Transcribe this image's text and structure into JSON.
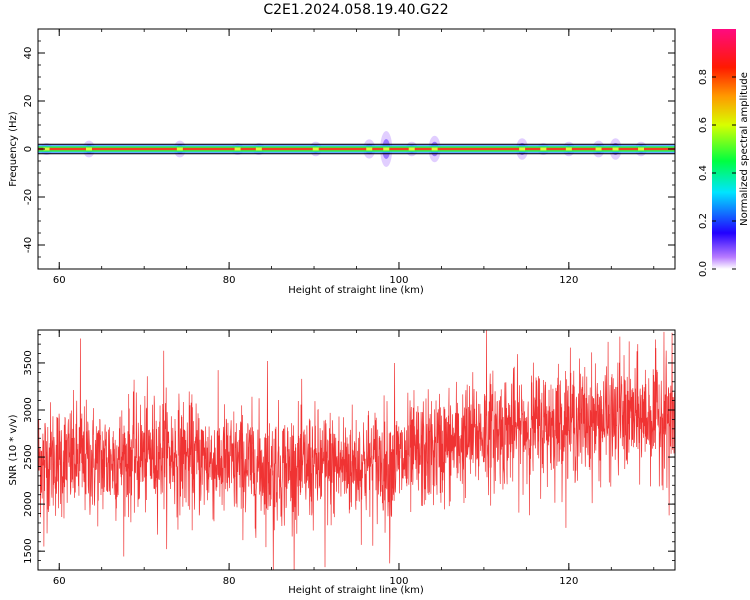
{
  "title": "C2E1.2024.058.19.40.G22",
  "chart_data": [
    {
      "type": "heatmap",
      "xlabel": "Height of straight line (km)",
      "ylabel": "Frequency (Hz)",
      "xlim": [
        57.5,
        132.5
      ],
      "ylim": [
        -50,
        50
      ],
      "xticks": [
        "60",
        "80",
        "100",
        "120"
      ],
      "yticks": [
        "40",
        "20",
        "0",
        "-20",
        "-40"
      ],
      "colorbar": {
        "label": "Normalized spectral amplitude",
        "range": [
          0,
          1
        ],
        "ticks": [
          "0.0",
          "0.2",
          "0.4",
          "0.6",
          "0.8"
        ]
      },
      "signal": {
        "frequency_center": 0,
        "core_half_width": 0.5,
        "spread_half_width": 2,
        "bursts": [
          {
            "x": 58.5,
            "spread": 2.5
          },
          {
            "x": 63.5,
            "spread": 3.5
          },
          {
            "x": 74.2,
            "spread": 3.5
          },
          {
            "x": 81.0,
            "spread": 2.5
          },
          {
            "x": 83.5,
            "spread": 2.5
          },
          {
            "x": 90.2,
            "spread": 3.0
          },
          {
            "x": 96.5,
            "spread": 4.0
          },
          {
            "x": 98.5,
            "spread": 7.5
          },
          {
            "x": 101.5,
            "spread": 3.0
          },
          {
            "x": 104.2,
            "spread": 5.5
          },
          {
            "x": 114.5,
            "spread": 4.5
          },
          {
            "x": 117.0,
            "spread": 2.5
          },
          {
            "x": 120.0,
            "spread": 3.0
          },
          {
            "x": 123.5,
            "spread": 3.5
          },
          {
            "x": 125.5,
            "spread": 4.5
          },
          {
            "x": 128.5,
            "spread": 3.0
          }
        ]
      }
    },
    {
      "type": "line",
      "xlabel": "Height of straight line (km)",
      "ylabel": "SNR (10 * v/v)",
      "xlim": [
        57.5,
        132.5
      ],
      "ylim": [
        1300,
        3850
      ],
      "xticks": [
        "60",
        "80",
        "100",
        "120"
      ],
      "yticks": [
        "1500",
        "2000",
        "2500",
        "3000",
        "3500"
      ],
      "color": "#f03333",
      "series": [
        {
          "trend_x": [
            57.5,
            65,
            72,
            80,
            88,
            95,
            100,
            105,
            110,
            115,
            120,
            125,
            132.5
          ],
          "trend_y": [
            2480,
            2450,
            2550,
            2420,
            2380,
            2420,
            2450,
            2600,
            2760,
            2820,
            2880,
            2900,
            2950
          ],
          "noise_std": 300,
          "spikes": [
            {
              "x": 62.5,
              "y": 3760
            },
            {
              "x": 72.3,
              "y": 3630
            },
            {
              "x": 84.5,
              "y": 3520
            },
            {
              "x": 99.5,
              "y": 3500
            },
            {
              "x": 110.3,
              "y": 3850
            },
            {
              "x": 126.0,
              "y": 3780
            },
            {
              "x": 131.2,
              "y": 3830
            },
            {
              "x": 85.2,
              "y": 1300
            },
            {
              "x": 91.3,
              "y": 1330
            },
            {
              "x": 98.9,
              "y": 1370
            },
            {
              "x": 131.8,
              "y": 1880
            },
            {
              "x": 58.2,
              "y": 1550
            }
          ]
        }
      ]
    }
  ]
}
